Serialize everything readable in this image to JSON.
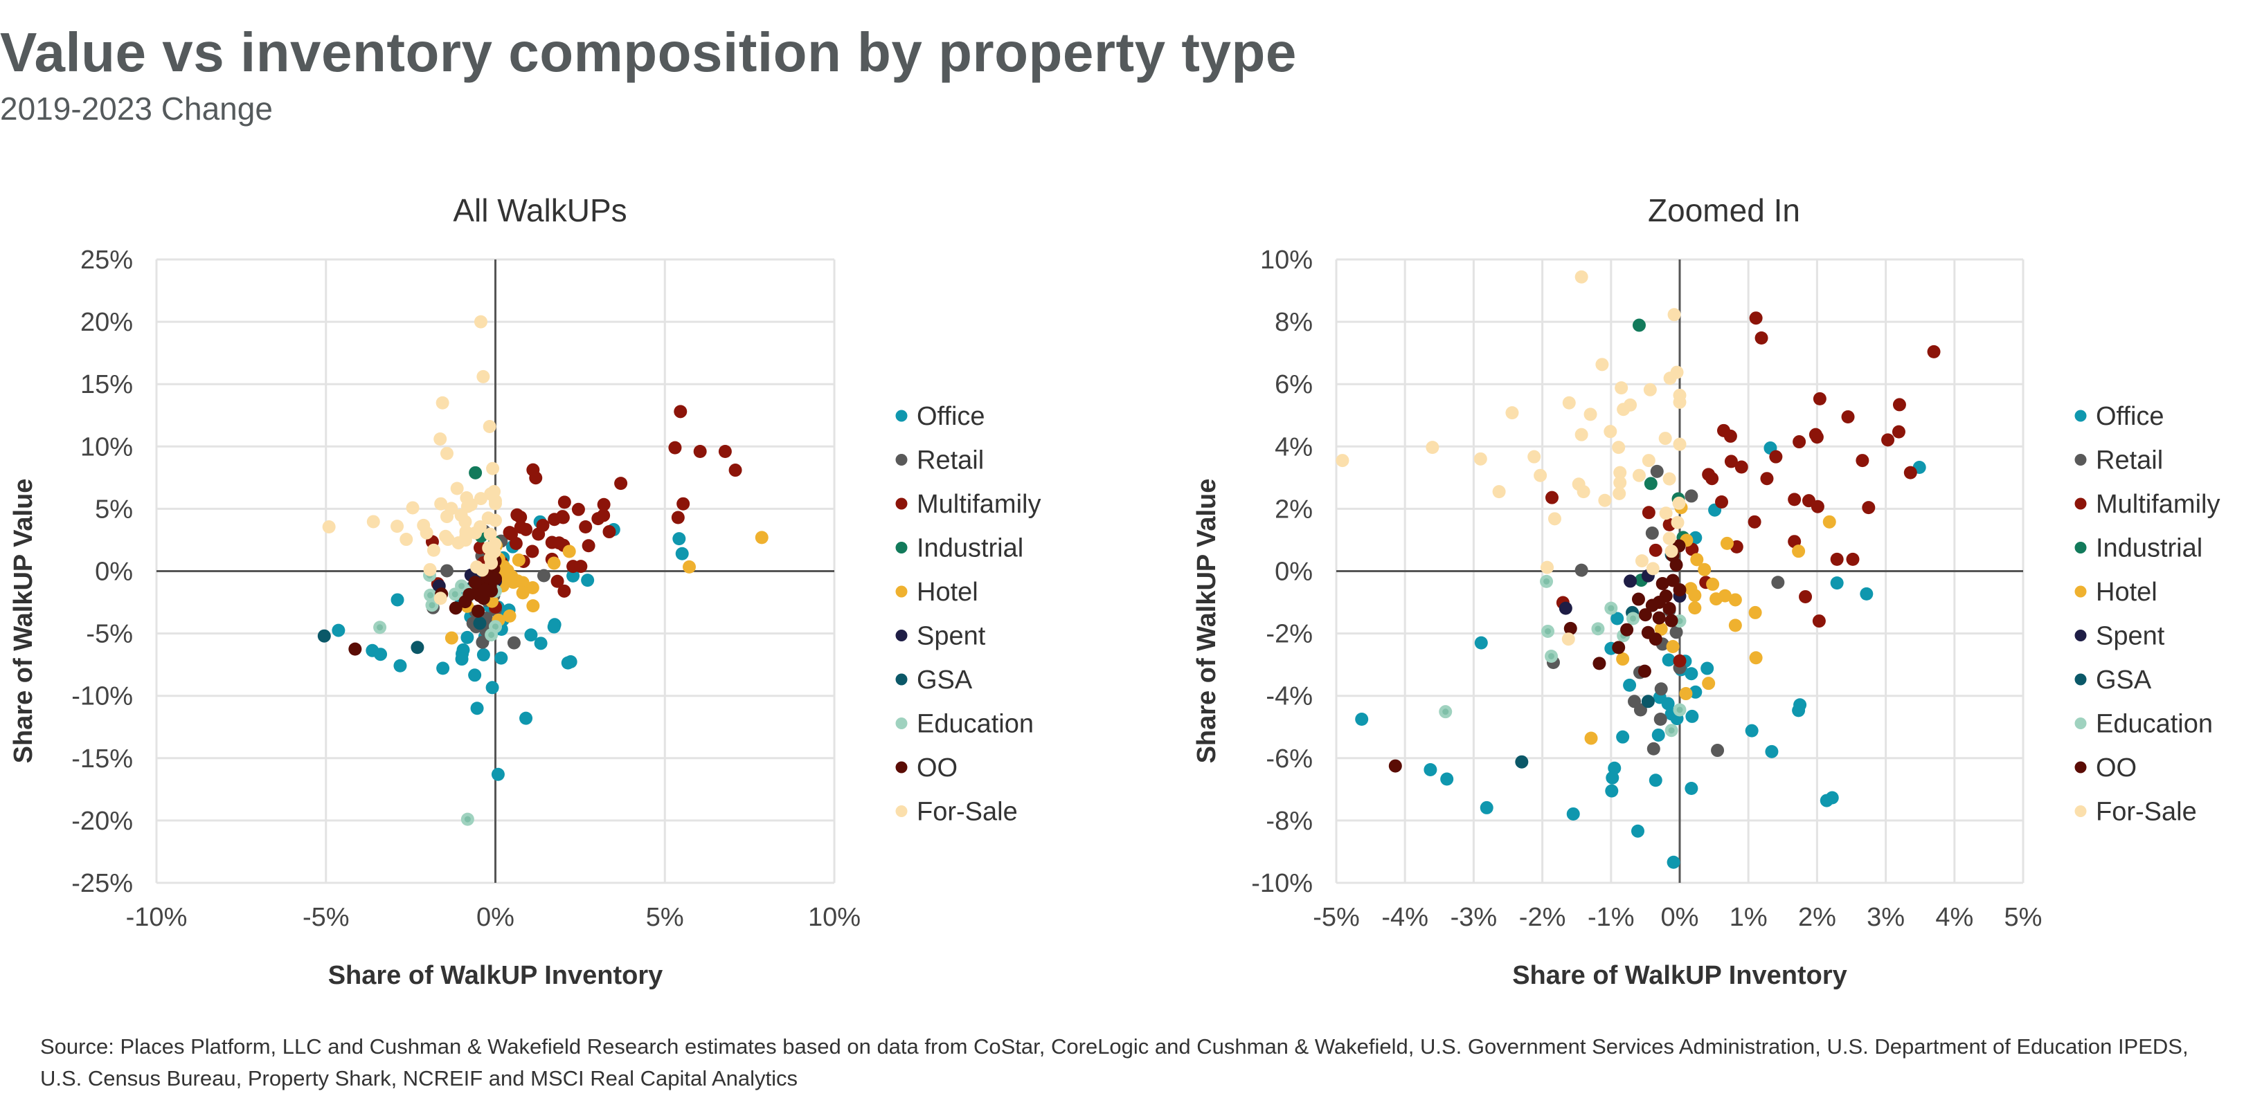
{
  "header": {
    "title": "Value vs inventory composition by property type",
    "subtitle": "2019-2023 Change"
  },
  "source": "Source: Places Platform, LLC and Cushman & Wakefield Research estimates based on data from CoStar, CoreLogic and Cushman & Wakefield, U.S. Government Services Administration, U.S. Department of Education IPEDS, U.S. Census Bureau, Property Shark, NCREIF and MSCI Real Capital Analytics",
  "chart_data": {
    "type": "scatter",
    "grid": true,
    "legend_position": "right",
    "panels": [
      {
        "title": "All WalkUPs",
        "xlabel": "Share of WalkUP Inventory",
        "ylabel": "Share of WalkUP Value",
        "xlim": [
          -10,
          10
        ],
        "ylim": [
          -25,
          25
        ],
        "xticks": [
          "-10%",
          "-5%",
          "0%",
          "5%",
          "10%"
        ],
        "xtick_values": [
          -10,
          -5,
          0,
          5,
          10
        ],
        "yticks": [
          "25%",
          "20%",
          "15%",
          "10%",
          "5%",
          "0%",
          "-5%",
          "-10%",
          "-15%",
          "-20%",
          "-25%"
        ],
        "ytick_values": [
          25,
          20,
          15,
          10,
          5,
          0,
          -5,
          -10,
          -15,
          -20,
          -25
        ]
      },
      {
        "title": "Zoomed In",
        "xlabel": "Share of WalkUP Inventory",
        "ylabel": "Share of WalkUP Value",
        "xlim": [
          -5,
          5
        ],
        "ylim": [
          -10,
          10
        ],
        "xticks": [
          "-5%",
          "-4%",
          "-3%",
          "-2%",
          "-1%",
          "0%",
          "1%",
          "2%",
          "3%",
          "4%",
          "5%"
        ],
        "xtick_values": [
          -5,
          -4,
          -3,
          -2,
          -1,
          0,
          1,
          2,
          3,
          4,
          5
        ],
        "yticks": [
          "10%",
          "8%",
          "6%",
          "4%",
          "2%",
          "0%",
          "-2%",
          "-4%",
          "-6%",
          "-8%",
          "-10%"
        ],
        "ytick_values": [
          10,
          8,
          6,
          4,
          2,
          0,
          -2,
          -4,
          -6,
          -8,
          -10
        ]
      }
    ],
    "series": [
      {
        "name": "Office",
        "color": "#0f97ae",
        "points": [
          [
            1.32,
            3.95
          ],
          [
            3.49,
            3.33
          ],
          [
            0.51,
            1.96
          ],
          [
            0.23,
            1.07
          ],
          [
            2.29,
            -0.38
          ],
          [
            2.72,
            -0.73
          ],
          [
            -0.91,
            -1.52
          ],
          [
            -1.0,
            -2.48
          ],
          [
            -2.89,
            -2.3
          ],
          [
            -0.16,
            -2.85
          ],
          [
            0.08,
            -2.89
          ],
          [
            0.17,
            -3.29
          ],
          [
            0.4,
            -3.12
          ],
          [
            -0.73,
            -3.66
          ],
          [
            0.23,
            -3.88
          ],
          [
            -0.29,
            -4.05
          ],
          [
            -0.17,
            -4.25
          ],
          [
            -0.12,
            -4.58
          ],
          [
            -0.04,
            -4.73
          ],
          [
            0.18,
            -4.66
          ],
          [
            1.75,
            -4.29
          ],
          [
            1.73,
            -4.47
          ],
          [
            1.05,
            -5.12
          ],
          [
            1.34,
            -5.79
          ],
          [
            -0.83,
            -5.32
          ],
          [
            -0.31,
            -5.26
          ],
          [
            -4.63,
            -4.75
          ],
          [
            -3.63,
            -6.37
          ],
          [
            -3.39,
            -6.67
          ],
          [
            -0.95,
            -6.32
          ],
          [
            -0.98,
            -6.63
          ],
          [
            -0.99,
            -7.05
          ],
          [
            -0.35,
            -6.71
          ],
          [
            0.17,
            -6.97
          ],
          [
            -2.81,
            -7.59
          ],
          [
            -1.55,
            -7.79
          ],
          [
            2.14,
            -7.36
          ],
          [
            2.22,
            -7.27
          ],
          [
            -0.61,
            -8.34
          ],
          [
            -0.09,
            -9.34
          ],
          [
            0.02,
            -3.16
          ],
          [
            5.42,
            2.6
          ],
          [
            5.51,
            1.4
          ],
          [
            0.08,
            -16.3
          ],
          [
            0.9,
            -11.8
          ],
          [
            -0.54,
            -11.0
          ]
        ]
      },
      {
        "name": "Retail",
        "color": "#595959",
        "points": [
          [
            -0.33,
            3.2
          ],
          [
            0.17,
            2.41
          ],
          [
            -0.4,
            1.22
          ],
          [
            -1.43,
            0.03
          ],
          [
            1.43,
            -0.36
          ],
          [
            -1.84,
            -2.93
          ],
          [
            0,
            -3.1
          ],
          [
            -0.05,
            -1.96
          ],
          [
            -0.58,
            -3.25
          ],
          [
            -0.27,
            -3.78
          ],
          [
            -0.66,
            -4.18
          ],
          [
            -0.57,
            -4.45
          ],
          [
            -0.28,
            -4.75
          ],
          [
            -0.38,
            -5.7
          ],
          [
            0.55,
            -5.75
          ],
          [
            -0.25,
            -2.34
          ],
          [
            -0.15,
            -1.25
          ]
        ]
      },
      {
        "name": "Multifamily",
        "color": "#8c1409",
        "points": [
          [
            1.11,
            8.12
          ],
          [
            1.19,
            7.48
          ],
          [
            3.7,
            7.04
          ],
          [
            2.04,
            5.53
          ],
          [
            3.2,
            5.34
          ],
          [
            2.45,
            4.95
          ],
          [
            0.64,
            4.51
          ],
          [
            0.74,
            4.33
          ],
          [
            3.19,
            4.47
          ],
          [
            3.03,
            4.21
          ],
          [
            1.98,
            4.38
          ],
          [
            2.0,
            4.3
          ],
          [
            1.74,
            4.15
          ],
          [
            1.4,
            3.67
          ],
          [
            0.75,
            3.52
          ],
          [
            0.9,
            3.34
          ],
          [
            2.66,
            3.55
          ],
          [
            3.36,
            3.16
          ],
          [
            0.42,
            3.1
          ],
          [
            0.47,
            2.97
          ],
          [
            1.27,
            2.97
          ],
          [
            -1.86,
            2.36
          ],
          [
            0.61,
            2.22
          ],
          [
            1.67,
            2.3
          ],
          [
            1.88,
            2.26
          ],
          [
            2.01,
            2.07
          ],
          [
            2.75,
            2.04
          ],
          [
            -0.45,
            1.88
          ],
          [
            1.09,
            1.58
          ],
          [
            -0.15,
            1.49
          ],
          [
            1.67,
            0.95
          ],
          [
            0.83,
            0.78
          ],
          [
            2.29,
            0.38
          ],
          [
            2.52,
            0.38
          ],
          [
            -0.35,
            0.67
          ],
          [
            0.18,
            0.7
          ],
          [
            0.38,
            -0.36
          ],
          [
            1.83,
            -0.82
          ],
          [
            2.03,
            -1.6
          ],
          [
            -1.7,
            -1.01
          ],
          [
            0,
            -2.88
          ],
          [
            5.46,
            12.8
          ],
          [
            5.3,
            9.9
          ],
          [
            6.04,
            9.6
          ],
          [
            6.78,
            9.6
          ],
          [
            7.08,
            8.1
          ],
          [
            5.54,
            5.4
          ],
          [
            5.39,
            4.3
          ]
        ]
      },
      {
        "name": "Industrial",
        "color": "#127a5b",
        "points": [
          [
            -0.59,
            7.89
          ],
          [
            -0.42,
            2.81
          ],
          [
            -0.02,
            2.32
          ],
          [
            0.05,
            1.08
          ],
          [
            -0.56,
            -0.29
          ]
        ]
      },
      {
        "name": "Hotel",
        "color": "#efb12f",
        "points": [
          [
            2.18,
            1.58
          ],
          [
            0.69,
            0.89
          ],
          [
            1.73,
            0.64
          ],
          [
            0.1,
            0.99
          ],
          [
            0.25,
            0.37
          ],
          [
            0.36,
            0.05
          ],
          [
            0.48,
            -0.42
          ],
          [
            0.16,
            -0.56
          ],
          [
            0.22,
            -0.78
          ],
          [
            0.53,
            -0.89
          ],
          [
            0.66,
            -0.79
          ],
          [
            0.81,
            -0.92
          ],
          [
            0.22,
            -1.18
          ],
          [
            1.1,
            -1.33
          ],
          [
            0.81,
            -1.74
          ],
          [
            -0.27,
            -1.86
          ],
          [
            -0.1,
            -2.42
          ],
          [
            -0.83,
            -2.82
          ],
          [
            1.11,
            -2.78
          ],
          [
            0.42,
            -3.6
          ],
          [
            0.09,
            -3.93
          ],
          [
            -1.29,
            -5.36
          ],
          [
            0.02,
            2.04
          ],
          [
            7.86,
            2.7
          ],
          [
            5.72,
            0.34
          ]
        ]
      },
      {
        "name": "Spent",
        "color": "#1e1d45",
        "points": [
          [
            -0.72,
            -0.32
          ],
          [
            -1.66,
            -1.19
          ],
          [
            -0.46,
            -0.15
          ],
          [
            0,
            -0.8
          ]
        ]
      },
      {
        "name": "GSA",
        "color": "#0b5868",
        "points": [
          [
            -2.3,
            -6.12
          ],
          [
            -0.46,
            -4.18
          ],
          [
            -0.69,
            -1.33
          ],
          [
            -0.12,
            0.53
          ],
          [
            -5.05,
            -5.2
          ]
        ]
      },
      {
        "name": "Education",
        "color": "#9fd2bf",
        "points": [
          [
            -1.94,
            -0.33
          ],
          [
            -1.0,
            -1.19
          ],
          [
            -1.19,
            -1.85
          ],
          [
            -1.92,
            -1.93
          ],
          [
            -1.87,
            -2.73
          ],
          [
            -3.41,
            -4.51
          ],
          [
            0,
            -4.45
          ],
          [
            -0.12,
            -5.11
          ],
          [
            -0.68,
            -1.52
          ],
          [
            -0.82,
            -2.07
          ],
          [
            0,
            -1.6
          ],
          [
            -0.82,
            -19.9
          ]
        ]
      },
      {
        "name": "OO",
        "color": "#5a0c05",
        "points": [
          [
            -4.14,
            -6.25
          ],
          [
            -1.59,
            -1.84
          ],
          [
            -1.17,
            -2.96
          ],
          [
            -0.89,
            -2.45
          ],
          [
            -0.77,
            -1.88
          ],
          [
            -0.51,
            -3.21
          ],
          [
            -0.46,
            -1.97
          ],
          [
            -0.35,
            -2.18
          ],
          [
            -0.12,
            -1.59
          ],
          [
            -0.01,
            0.81
          ],
          [
            -0.1,
            -0.3
          ],
          [
            -0.2,
            -0.8
          ],
          [
            -0.3,
            -1.0
          ],
          [
            -0.05,
            0.2
          ],
          [
            -0.15,
            -1.2
          ],
          [
            -0.4,
            -1.1
          ],
          [
            -0.25,
            -0.4
          ],
          [
            0,
            -0.6
          ],
          [
            -0.5,
            -1.4
          ],
          [
            -0.3,
            -1.5
          ],
          [
            -0.1,
            0.5
          ],
          [
            -0.6,
            -0.9
          ]
        ]
      },
      {
        "name": "For-Sale",
        "color": "#fbdfac",
        "points": [
          [
            -1.43,
            9.44
          ],
          [
            -0.08,
            8.23
          ],
          [
            -1.13,
            6.63
          ],
          [
            -0.14,
            6.19
          ],
          [
            -0.04,
            6.38
          ],
          [
            -0.85,
            5.88
          ],
          [
            -0.43,
            5.82
          ],
          [
            0,
            5.64
          ],
          [
            0,
            5.42
          ],
          [
            -1.61,
            5.4
          ],
          [
            -0.72,
            5.33
          ],
          [
            -0.82,
            5.19
          ],
          [
            -2.44,
            5.08
          ],
          [
            -1.3,
            5.03
          ],
          [
            -1.01,
            4.48
          ],
          [
            -1.43,
            4.38
          ],
          [
            -0.21,
            4.26
          ],
          [
            0,
            4.07
          ],
          [
            -3.6,
            3.97
          ],
          [
            -0.89,
            3.97
          ],
          [
            -4.91,
            3.55
          ],
          [
            -2.9,
            3.6
          ],
          [
            -2.12,
            3.67
          ],
          [
            -0.45,
            3.55
          ],
          [
            -0.87,
            3.16
          ],
          [
            -0.59,
            3.07
          ],
          [
            -2.03,
            3.07
          ],
          [
            -0.15,
            2.96
          ],
          [
            -0.87,
            2.84
          ],
          [
            -1.47,
            2.79
          ],
          [
            -1.4,
            2.55
          ],
          [
            -2.63,
            2.55
          ],
          [
            -0.88,
            2.49
          ],
          [
            -1.09,
            2.27
          ],
          [
            -1.82,
            1.68
          ],
          [
            -0.2,
            1.86
          ],
          [
            -0.01,
            2.18
          ],
          [
            -0.03,
            1.56
          ],
          [
            -0.15,
            1.05
          ],
          [
            -0.12,
            0.64
          ],
          [
            -0.55,
            0.33
          ],
          [
            -0.39,
            0.08
          ],
          [
            -1.93,
            0.12
          ],
          [
            -1.62,
            -2.18
          ],
          [
            -0.43,
            20.0
          ],
          [
            -0.36,
            15.6
          ],
          [
            -1.56,
            13.5
          ],
          [
            -0.17,
            11.6
          ],
          [
            -1.63,
            10.6
          ]
        ]
      }
    ]
  }
}
